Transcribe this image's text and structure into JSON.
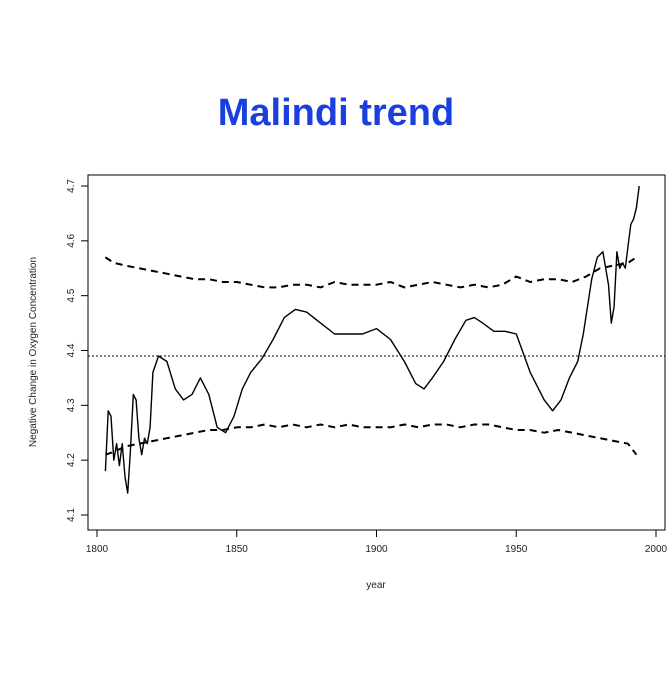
{
  "title": "Malindi trend",
  "chart_data": {
    "type": "line",
    "title": "Malindi trend",
    "xlabel": "year",
    "ylabel": "Negative Change in Oxygen Concentration",
    "xlim": [
      1800,
      2000
    ],
    "ylim": [
      4.1,
      4.7
    ],
    "x_ticks": [
      1800,
      1850,
      1900,
      1950,
      2000
    ],
    "y_ticks": [
      4.1,
      4.2,
      4.3,
      4.4,
      4.5,
      4.6,
      4.7
    ],
    "grid": false,
    "legend": "none",
    "mean_reference_line": 4.39,
    "series": [
      {
        "style": "solid",
        "color": "#000000",
        "x": [
          1803,
          1804,
          1805,
          1806,
          1807,
          1808,
          1809,
          1810,
          1811,
          1812,
          1813,
          1814,
          1815,
          1816,
          1817,
          1818,
          1819,
          1820,
          1822,
          1825,
          1828,
          1831,
          1834,
          1837,
          1840,
          1843,
          1846,
          1849,
          1852,
          1855,
          1859,
          1863,
          1867,
          1871,
          1875,
          1880,
          1885,
          1890,
          1895,
          1900,
          1905,
          1910,
          1914,
          1917,
          1920,
          1924,
          1928,
          1932,
          1935,
          1938,
          1942,
          1946,
          1950,
          1955,
          1960,
          1963,
          1966,
          1969,
          1972,
          1974,
          1977,
          1979,
          1981,
          1983,
          1984,
          1985,
          1986,
          1987,
          1988,
          1989,
          1990,
          1991,
          1992,
          1993,
          1994
        ],
        "y": [
          4.18,
          4.29,
          4.28,
          4.2,
          4.23,
          4.19,
          4.23,
          4.17,
          4.14,
          4.22,
          4.32,
          4.31,
          4.24,
          4.21,
          4.24,
          4.23,
          4.26,
          4.36,
          4.39,
          4.38,
          4.33,
          4.31,
          4.32,
          4.35,
          4.32,
          4.26,
          4.25,
          4.28,
          4.33,
          4.36,
          4.385,
          4.42,
          4.46,
          4.475,
          4.47,
          4.45,
          4.43,
          4.43,
          4.43,
          4.44,
          4.42,
          4.38,
          4.34,
          4.33,
          4.35,
          4.38,
          4.42,
          4.455,
          4.46,
          4.45,
          4.435,
          4.435,
          4.43,
          4.36,
          4.31,
          4.29,
          4.31,
          4.35,
          4.38,
          4.43,
          4.53,
          4.57,
          4.58,
          4.52,
          4.45,
          4.48,
          4.58,
          4.55,
          4.56,
          4.55,
          4.59,
          4.63,
          4.64,
          4.66,
          4.7
        ]
      },
      {
        "style": "dashed",
        "color": "#000000",
        "x": [
          1803,
          1806,
          1810,
          1815,
          1820,
          1825,
          1830,
          1835,
          1840,
          1845,
          1850,
          1855,
          1860,
          1865,
          1870,
          1875,
          1880,
          1885,
          1890,
          1895,
          1900,
          1905,
          1910,
          1915,
          1920,
          1925,
          1930,
          1935,
          1940,
          1945,
          1950,
          1955,
          1960,
          1965,
          1970,
          1975,
          1980,
          1985,
          1990,
          1993
        ],
        "y": [
          4.57,
          4.56,
          4.555,
          4.55,
          4.545,
          4.54,
          4.535,
          4.53,
          4.53,
          4.525,
          4.525,
          4.52,
          4.515,
          4.515,
          4.52,
          4.52,
          4.515,
          4.525,
          4.52,
          4.52,
          4.52,
          4.525,
          4.515,
          4.52,
          4.525,
          4.52,
          4.515,
          4.52,
          4.515,
          4.52,
          4.535,
          4.525,
          4.53,
          4.53,
          4.525,
          4.535,
          4.55,
          4.555,
          4.56,
          4.57
        ]
      },
      {
        "style": "dashed",
        "color": "#000000",
        "x": [
          1803,
          1806,
          1810,
          1815,
          1820,
          1825,
          1830,
          1835,
          1840,
          1845,
          1850,
          1855,
          1860,
          1865,
          1870,
          1875,
          1880,
          1885,
          1890,
          1895,
          1900,
          1905,
          1910,
          1915,
          1920,
          1925,
          1930,
          1935,
          1940,
          1945,
          1950,
          1955,
          1960,
          1965,
          1970,
          1975,
          1980,
          1985,
          1990,
          1993
        ],
        "y": [
          4.21,
          4.215,
          4.225,
          4.23,
          4.235,
          4.24,
          4.245,
          4.25,
          4.255,
          4.255,
          4.26,
          4.26,
          4.265,
          4.26,
          4.265,
          4.26,
          4.265,
          4.26,
          4.265,
          4.26,
          4.26,
          4.26,
          4.265,
          4.26,
          4.265,
          4.265,
          4.26,
          4.265,
          4.265,
          4.26,
          4.255,
          4.255,
          4.25,
          4.255,
          4.25,
          4.245,
          4.24,
          4.235,
          4.23,
          4.21
        ]
      }
    ]
  }
}
